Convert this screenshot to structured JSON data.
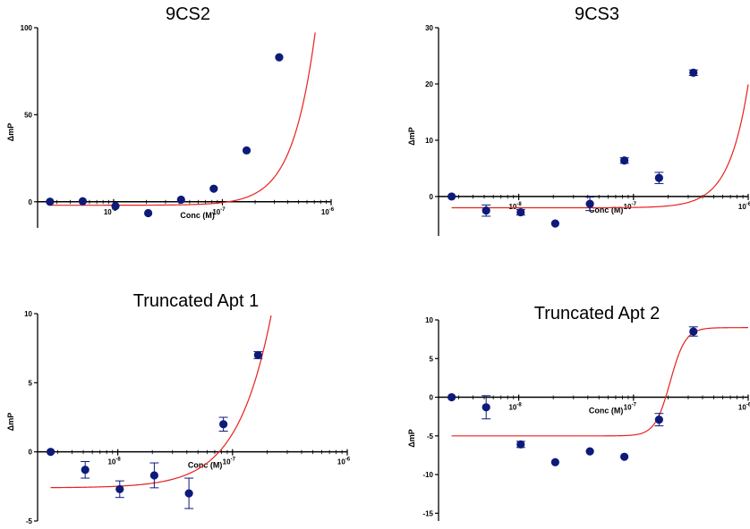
{
  "colors": {
    "points": "#0d1a7a",
    "fit": "#e8201e",
    "axis": "#000000"
  },
  "chart_data": [
    {
      "type": "scatter",
      "title": "9CS2",
      "xlabel": "Conc (M)",
      "ylabel": "ΔmP",
      "x_scale": "log",
      "xlim": [
        2e-09,
        1e-06
      ],
      "ylim": [
        -15,
        100
      ],
      "yticks": [
        "0",
        "50",
        "100"
      ],
      "xticks": [
        {
          "base": "10",
          "exp": "-8"
        },
        {
          "base": "10",
          "exp": "-7"
        },
        {
          "base": "10",
          "exp": "-6"
        }
      ],
      "series": [
        {
          "x": [
            2.6e-09,
            5.2e-09,
            1.04e-08,
            2.08e-08,
            4.17e-08,
            8.33e-08,
            1.67e-07,
            3.33e-07
          ],
          "y": [
            0,
            0.3,
            -2.5,
            -6.5,
            1.2,
            7.5,
            29.5,
            83
          ],
          "err": [
            0,
            0,
            0,
            0,
            0,
            0,
            0,
            0
          ]
        }
      ],
      "fit": {
        "bottom": -2,
        "top": 2000,
        "logEC50": -5.55,
        "hill": 2.15
      }
    },
    {
      "type": "scatter",
      "title": "9CS3",
      "xlabel": "Conc (M)",
      "ylabel": "ΔmP",
      "x_scale": "log",
      "xlim": [
        2e-09,
        1e-06
      ],
      "ylim": [
        -7,
        30
      ],
      "yticks": [
        "0",
        "10",
        "20",
        "30"
      ],
      "xticks": [
        {
          "base": "10",
          "exp": "-8"
        },
        {
          "base": "10",
          "exp": "-7"
        },
        {
          "base": "10",
          "exp": "-6"
        }
      ],
      "series": [
        {
          "x": [
            2.6e-09,
            5.2e-09,
            1.04e-08,
            2.08e-08,
            4.17e-08,
            8.33e-08,
            1.67e-07,
            3.33e-07
          ],
          "y": [
            0,
            -2.5,
            -2.8,
            -4.8,
            -1.3,
            6.4,
            3.3,
            22
          ],
          "err": [
            0,
            1.0,
            0.5,
            0,
            1.2,
            0.5,
            1.0,
            0.5
          ]
        }
      ],
      "fit": {
        "bottom": -2,
        "top": 1000,
        "logEC50": -5.37,
        "hill": 2.62
      }
    },
    {
      "type": "scatter",
      "title": "Truncated Apt 1",
      "xlabel": "Conc (M)",
      "ylabel": "ΔmP",
      "x_scale": "log",
      "xlim": [
        2e-09,
        1e-06
      ],
      "ylim": [
        -5,
        10
      ],
      "yticks": [
        "-5",
        "0",
        "5",
        "10"
      ],
      "xticks": [
        {
          "base": "10",
          "exp": "-8"
        },
        {
          "base": "10",
          "exp": "-7"
        },
        {
          "base": "10",
          "exp": "-6"
        }
      ],
      "series": [
        {
          "x": [
            2.6e-09,
            5.2e-09,
            1.04e-08,
            2.08e-08,
            4.17e-08,
            8.33e-08,
            1.67e-07
          ],
          "y": [
            0,
            -1.3,
            -2.7,
            -1.7,
            -3.0,
            2.0,
            7.0
          ],
          "err": [
            0,
            0.6,
            0.6,
            0.9,
            1.1,
            0.5,
            0.25
          ]
        }
      ],
      "fit": {
        "bottom": -2.6,
        "top": 200,
        "logEC50": -5.9,
        "hill": 1.55
      }
    },
    {
      "type": "scatter",
      "title": "Truncated Apt 2",
      "xlabel": "Conc (M)",
      "ylabel": "ΔmP",
      "x_scale": "log",
      "xlim": [
        2e-09,
        1e-06
      ],
      "ylim": [
        -16,
        10
      ],
      "yticks": [
        "-15",
        "-10",
        "-5",
        "0",
        "5",
        "10"
      ],
      "xticks": [
        {
          "base": "10",
          "exp": "-8"
        },
        {
          "base": "10",
          "exp": "-7"
        },
        {
          "base": "10",
          "exp": "-6"
        }
      ],
      "series": [
        {
          "x": [
            2.6e-09,
            5.2e-09,
            1.04e-08,
            2.08e-08,
            4.17e-08,
            8.33e-08,
            1.67e-07,
            3.33e-07
          ],
          "y": [
            0,
            -1.3,
            -6.1,
            -8.4,
            -7.0,
            -7.7,
            -2.9,
            8.5
          ],
          "err": [
            0,
            1.5,
            0.4,
            0,
            0,
            0,
            0.8,
            0.6
          ]
        }
      ],
      "fit": {
        "bottom": -5,
        "top": 9,
        "logEC50": -6.68,
        "hill": 6.5
      }
    }
  ]
}
